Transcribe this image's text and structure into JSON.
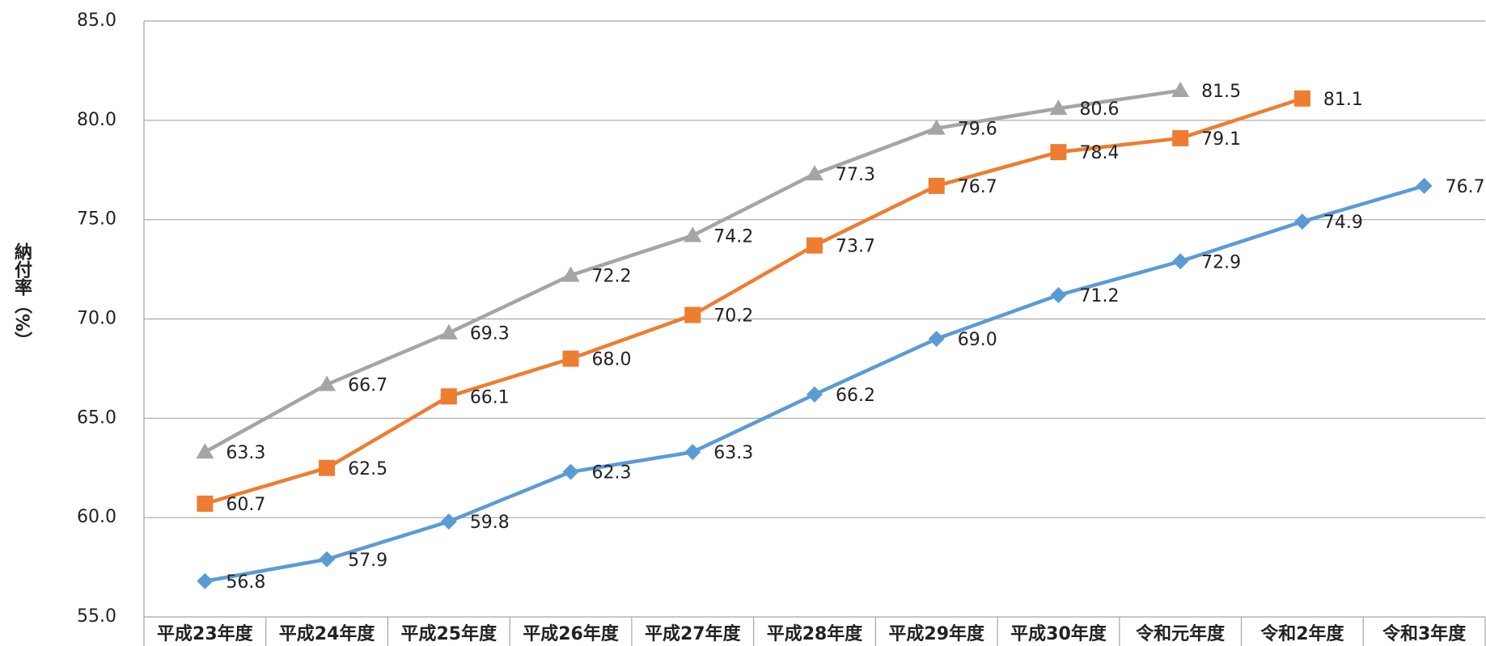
{
  "chart_data": {
    "type": "line",
    "y_label": "納付率（%）",
    "categories": [
      "平成23年度",
      "平成24年度",
      "平成25年度",
      "平成26年度",
      "平成27年度",
      "平成28年度",
      "平成29年度",
      "平成30年度",
      "令和元年度",
      "令和2年度",
      "令和3年度"
    ],
    "series": [
      {
        "color": "#5b9bd5",
        "marker": "diamond",
        "values": [
          56.8,
          57.9,
          59.8,
          62.3,
          63.3,
          66.2,
          69.0,
          71.2,
          72.9,
          74.9,
          76.7
        ],
        "value_labels": [
          "56.8",
          "57.9",
          "59.8",
          "62.3",
          "63.3",
          "66.2",
          "69.0",
          "71.2",
          "72.9",
          "74.9",
          "76.7"
        ]
      },
      {
        "color": "#ed7d31",
        "marker": "square",
        "values": [
          60.7,
          62.5,
          66.1,
          68.0,
          70.2,
          73.7,
          76.7,
          78.4,
          79.1,
          81.1,
          null
        ],
        "value_labels": [
          "60.7",
          "62.5",
          "66.1",
          "68.0",
          "70.2",
          "73.7",
          "76.7",
          "78.4",
          "79.1",
          "81.1",
          null
        ]
      },
      {
        "color": "#a5a5a5",
        "marker": "triangle",
        "values": [
          63.3,
          66.7,
          69.3,
          72.2,
          74.2,
          77.3,
          79.6,
          80.6,
          81.5,
          null,
          null
        ],
        "value_labels": [
          "63.3",
          "66.7",
          "69.3",
          "72.2",
          "74.2",
          "77.3",
          "79.6",
          "80.6",
          "81.5",
          null,
          null
        ]
      }
    ],
    "ylim": [
      55,
      85
    ],
    "yticks": [
      {
        "value": 55,
        "label": "55.0"
      },
      {
        "value": 60,
        "label": "60.0"
      },
      {
        "value": 65,
        "label": "65.0"
      },
      {
        "value": 70,
        "label": "70.0"
      },
      {
        "value": 75,
        "label": "75.0"
      },
      {
        "value": 80,
        "label": "80.0"
      },
      {
        "value": 85,
        "label": "85.0"
      }
    ],
    "grid": true
  }
}
